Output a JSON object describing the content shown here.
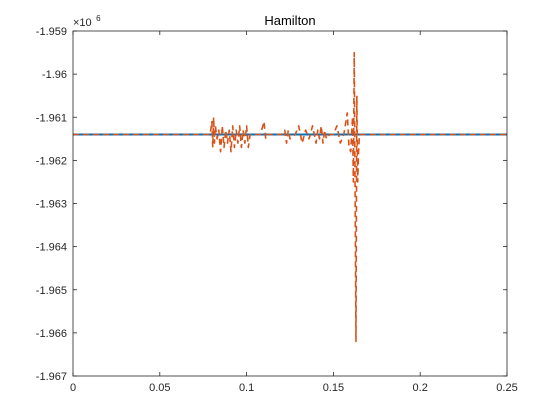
{
  "chart_data": {
    "type": "line",
    "title": "Hamilton",
    "xlabel": "",
    "ylabel": "",
    "y_exponent_base": "×10",
    "y_exponent_power": "6",
    "xlim": [
      0,
      0.25
    ],
    "ylim": [
      -1.967,
      -1.959
    ],
    "x_ticks": [
      0,
      0.05,
      0.1,
      0.15,
      0.2,
      0.25
    ],
    "x_tick_labels": [
      "0",
      "0.05",
      "0.1",
      "0.15",
      "0.2",
      "0.25"
    ],
    "y_ticks": [
      -1.967,
      -1.966,
      -1.965,
      -1.964,
      -1.963,
      -1.962,
      -1.961,
      -1.96,
      -1.959
    ],
    "y_tick_labels": [
      "-1.967",
      "-1.966",
      "-1.965",
      "-1.964",
      "-1.963",
      "-1.962",
      "-1.961",
      "-1.96",
      "-1.959"
    ],
    "grid": false,
    "box": true,
    "series": [
      {
        "color": "#0072BD",
        "line_style": "solid",
        "x": [
          0,
          0.25
        ],
        "y": [
          -1.9614,
          -1.9614
        ]
      },
      {
        "color": "#D95319",
        "line_style": "dashed",
        "x": [
          0,
          0.079,
          0.08,
          0.0805,
          0.081,
          0.0815,
          0.082,
          0.083,
          0.084,
          0.085,
          0.086,
          0.087,
          0.088,
          0.089,
          0.09,
          0.091,
          0.092,
          0.093,
          0.094,
          0.095,
          0.096,
          0.097,
          0.098,
          0.099,
          0.1,
          0.101,
          0.102,
          0.105,
          0.108,
          0.11,
          0.111,
          0.112,
          0.115,
          0.12,
          0.122,
          0.123,
          0.124,
          0.125,
          0.128,
          0.13,
          0.132,
          0.134,
          0.136,
          0.138,
          0.14,
          0.141,
          0.142,
          0.143,
          0.144,
          0.145,
          0.146,
          0.148,
          0.15,
          0.152,
          0.154,
          0.156,
          0.158,
          0.159,
          0.16,
          0.161,
          0.1615,
          0.162,
          0.1625,
          0.163,
          0.1635,
          0.164,
          0.1645,
          0.165,
          0.166,
          0.168,
          0.25
        ],
        "y": [
          -1.9614,
          -1.9614,
          -1.9611,
          -1.9617,
          -1.961,
          -1.9616,
          -1.9612,
          -1.9615,
          -1.9613,
          -1.9618,
          -1.9612,
          -1.9617,
          -1.9613,
          -1.9616,
          -1.9613,
          -1.9618,
          -1.9612,
          -1.9617,
          -1.9613,
          -1.9616,
          -1.9612,
          -1.9617,
          -1.9613,
          -1.9616,
          -1.9612,
          -1.9617,
          -1.9614,
          -1.9614,
          -1.9614,
          -1.9611,
          -1.9615,
          -1.9614,
          -1.9614,
          -1.9614,
          -1.9613,
          -1.9616,
          -1.9613,
          -1.9615,
          -1.9614,
          -1.9612,
          -1.9616,
          -1.9613,
          -1.9615,
          -1.9612,
          -1.9616,
          -1.9613,
          -1.9615,
          -1.9612,
          -1.9616,
          -1.9613,
          -1.9615,
          -1.9614,
          -1.9614,
          -1.9612,
          -1.9616,
          -1.9614,
          -1.9609,
          -1.9617,
          -1.9618,
          -1.961,
          -1.9625,
          -1.9595,
          -1.9627,
          -1.9662,
          -1.9605,
          -1.9625,
          -1.9618,
          -1.9614,
          -1.9614,
          -1.9614,
          -1.9614
        ]
      }
    ]
  }
}
